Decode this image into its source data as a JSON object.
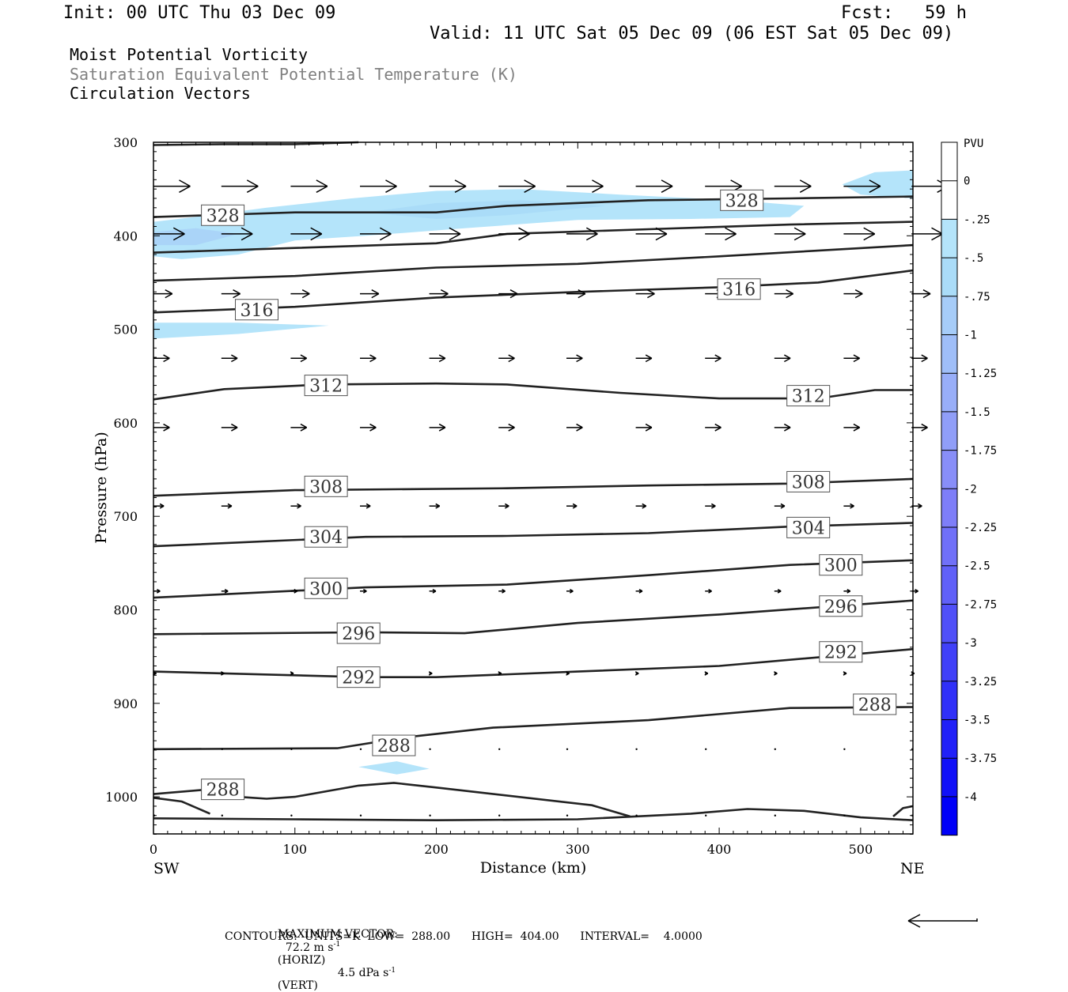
{
  "header": {
    "init": "Init: 00 UTC Thu 03 Dec 09",
    "fcst": "Fcst:   59 h",
    "valid": "Valid: 11 UTC Sat 05 Dec 09 (06 EST Sat 05 Dec 09)",
    "fields": [
      {
        "text": "Moist Potential Vorticity",
        "color": "#000000"
      },
      {
        "text": "Saturation Equivalent Potential Temperature (K)",
        "color": "#808080"
      },
      {
        "text": "Circulation Vectors",
        "color": "#000000"
      }
    ]
  },
  "footer": {
    "max_vector_label": "MAXIMUM VECTOR:",
    "max_vector_horiz": "72.2 m s",
    "horiz_unit": "(HORIZ)",
    "max_vector_vert": "4.5 dPa s",
    "vert_unit": "(VERT)",
    "exp": "-1",
    "contours": "CONTOURS:  UNITS=K  LOW=  288.00      HIGH=  404.00      INTERVAL=    4.0000"
  },
  "chart_data": {
    "type": "cross-section",
    "xlabel": "Distance (km)",
    "ylabel": "Pressure (hPa)",
    "xlim": [
      0,
      537
    ],
    "ylim": [
      1040,
      300
    ],
    "x_ticks": [
      0,
      100,
      200,
      300,
      400,
      500
    ],
    "y_ticks": [
      300,
      400,
      500,
      600,
      700,
      800,
      900,
      1000
    ],
    "endpoint_left": "SW",
    "endpoint_right": "NE",
    "colorbar": {
      "title": "PVU",
      "labels": [
        "0",
        "-.25",
        "-.5",
        "-.75",
        "-1",
        "-1.25",
        "-1.5",
        "-1.75",
        "-2",
        "-2.25",
        "-2.5",
        "-2.75",
        "-3",
        "-3.25",
        "-3.5",
        "-3.75",
        "-4"
      ],
      "colors": [
        "#ffffff",
        "#ffffff",
        "#b4e4fa",
        "#aadcf8",
        "#a6ccf8",
        "#9fbef8",
        "#98aef8",
        "#909ef8",
        "#888ef8",
        "#7e7ef8",
        "#7070f8",
        "#6060f8",
        "#5050f8",
        "#4040f8",
        "#3030f8",
        "#2020f8",
        "#1010f8",
        "#0000f8"
      ]
    },
    "pv_shading": [
      {
        "color": "#b4e4fa",
        "points": [
          [
            0,
            385
          ],
          [
            40,
            378
          ],
          [
            80,
            370
          ],
          [
            140,
            360
          ],
          [
            200,
            352
          ],
          [
            260,
            350
          ],
          [
            330,
            356
          ],
          [
            410,
            362
          ],
          [
            460,
            368
          ],
          [
            450,
            380
          ],
          [
            380,
            382
          ],
          [
            300,
            383
          ],
          [
            220,
            392
          ],
          [
            150,
            400
          ],
          [
            100,
            405
          ],
          [
            60,
            420
          ],
          [
            20,
            425
          ],
          [
            0,
            422
          ]
        ]
      },
      {
        "color": "#aadcf8",
        "points": [
          [
            150,
            375
          ],
          [
            200,
            365
          ],
          [
            260,
            362
          ],
          [
            320,
            368
          ],
          [
            250,
            378
          ],
          [
            200,
            382
          ]
        ]
      },
      {
        "color": "#aad4f8",
        "points": [
          [
            0,
            396
          ],
          [
            30,
            392
          ],
          [
            60,
            398
          ],
          [
            30,
            410
          ],
          [
            0,
            410
          ]
        ]
      },
      {
        "color": "#b4e4fa",
        "points": [
          [
            487,
            345
          ],
          [
            510,
            332
          ],
          [
            537,
            330
          ],
          [
            537,
            360
          ],
          [
            500,
            356
          ]
        ]
      },
      {
        "color": "#b4e4fa",
        "points": [
          [
            0,
            493
          ],
          [
            60,
            493
          ],
          [
            124,
            496
          ],
          [
            60,
            505
          ],
          [
            0,
            510
          ]
        ]
      },
      {
        "color": "#b4e4fa",
        "points": [
          [
            145,
            968
          ],
          [
            172,
            962
          ],
          [
            195,
            970
          ],
          [
            172,
            976
          ]
        ]
      }
    ],
    "theta_contours": [
      {
        "label": "328",
        "points": [
          [
            0,
            380
          ],
          [
            100,
            375
          ],
          [
            200,
            375
          ],
          [
            250,
            368
          ],
          [
            350,
            362
          ],
          [
            450,
            360
          ],
          [
            537,
            358
          ]
        ],
        "label_at": [
          [
            49,
            378
          ],
          [
            416,
            362
          ]
        ]
      },
      {
        "label": "",
        "points": [
          [
            0,
            303
          ],
          [
            50,
            302
          ],
          [
            100,
            302
          ],
          [
            145,
            300
          ]
        ],
        "label_at": []
      },
      {
        "label": "",
        "points": [
          [
            0,
            418
          ],
          [
            100,
            413
          ],
          [
            200,
            408
          ],
          [
            250,
            398
          ],
          [
            350,
            393
          ],
          [
            450,
            388
          ],
          [
            537,
            385
          ]
        ],
        "label_at": []
      },
      {
        "label": "",
        "points": [
          [
            0,
            448
          ],
          [
            100,
            443
          ],
          [
            200,
            434
          ],
          [
            300,
            430
          ],
          [
            400,
            422
          ],
          [
            537,
            410
          ]
        ],
        "label_at": []
      },
      {
        "label": "316",
        "points": [
          [
            0,
            482
          ],
          [
            100,
            476
          ],
          [
            200,
            466
          ],
          [
            300,
            460
          ],
          [
            400,
            455
          ],
          [
            470,
            450
          ],
          [
            537,
            437
          ]
        ],
        "label_at": [
          [
            73,
            479
          ],
          [
            414,
            457
          ]
        ]
      },
      {
        "label": "312",
        "points": [
          [
            0,
            575
          ],
          [
            50,
            564
          ],
          [
            120,
            559
          ],
          [
            200,
            558
          ],
          [
            250,
            559
          ],
          [
            330,
            568
          ],
          [
            400,
            574
          ],
          [
            470,
            574
          ],
          [
            510,
            565
          ],
          [
            537,
            565
          ]
        ],
        "label_at": [
          [
            122,
            560
          ],
          [
            463,
            571
          ]
        ]
      },
      {
        "label": "308",
        "points": [
          [
            0,
            678
          ],
          [
            100,
            672
          ],
          [
            250,
            670
          ],
          [
            350,
            667
          ],
          [
            450,
            665
          ],
          [
            537,
            660
          ]
        ],
        "label_at": [
          [
            122,
            668
          ],
          [
            463,
            663
          ]
        ]
      },
      {
        "label": "304",
        "points": [
          [
            0,
            732
          ],
          [
            150,
            722
          ],
          [
            250,
            721
          ],
          [
            350,
            718
          ],
          [
            450,
            711
          ],
          [
            537,
            707
          ]
        ],
        "label_at": [
          [
            122,
            722
          ],
          [
            463,
            712
          ]
        ]
      },
      {
        "label": "300",
        "points": [
          [
            0,
            787
          ],
          [
            150,
            776
          ],
          [
            250,
            773
          ],
          [
            350,
            763
          ],
          [
            450,
            752
          ],
          [
            537,
            747
          ]
        ],
        "label_at": [
          [
            122,
            777
          ],
          [
            486,
            752
          ]
        ]
      },
      {
        "label": "296",
        "points": [
          [
            0,
            826
          ],
          [
            150,
            824
          ],
          [
            220,
            825
          ],
          [
            300,
            814
          ],
          [
            400,
            805
          ],
          [
            537,
            790
          ]
        ],
        "label_at": [
          [
            145,
            825
          ],
          [
            486,
            796
          ]
        ]
      },
      {
        "label": "292",
        "points": [
          [
            0,
            866
          ],
          [
            150,
            872
          ],
          [
            200,
            872
          ],
          [
            300,
            866
          ],
          [
            400,
            860
          ],
          [
            537,
            842
          ]
        ],
        "label_at": [
          [
            145,
            872
          ],
          [
            486,
            845
          ]
        ]
      },
      {
        "label": "288",
        "points": [
          [
            0,
            949
          ],
          [
            130,
            948
          ],
          [
            180,
            936
          ],
          [
            240,
            926
          ],
          [
            350,
            918
          ],
          [
            450,
            905
          ],
          [
            537,
            904
          ]
        ],
        "label_at": [
          [
            170,
            945
          ],
          [
            510,
            901
          ]
        ]
      },
      {
        "label": "288",
        "points": [
          [
            0,
            997
          ],
          [
            40,
            992
          ],
          [
            60,
            1000
          ],
          [
            80,
            1002
          ],
          [
            100,
            1000
          ],
          [
            145,
            988
          ],
          [
            170,
            985
          ],
          [
            200,
            990
          ],
          [
            310,
            1009
          ],
          [
            337,
            1021
          ]
        ],
        "label_at": [
          [
            49,
            992
          ]
        ]
      },
      {
        "label": "",
        "points": [
          [
            0,
            1001
          ],
          [
            20,
            1005
          ],
          [
            40,
            1018
          ]
        ],
        "label_at": []
      },
      {
        "label": "",
        "points": [
          [
            0,
            1023
          ],
          [
            100,
            1024
          ],
          [
            200,
            1025
          ],
          [
            300,
            1024
          ],
          [
            380,
            1018
          ],
          [
            420,
            1013
          ],
          [
            460,
            1015
          ],
          [
            500,
            1022
          ],
          [
            537,
            1025
          ]
        ],
        "label_at": []
      },
      {
        "label": "",
        "points": [
          [
            523,
            1021
          ],
          [
            530,
            1012
          ],
          [
            537,
            1010
          ]
        ],
        "label_at": []
      }
    ],
    "vector_rows": [
      {
        "p": 347,
        "u": 39,
        "w": 0
      },
      {
        "p": 398,
        "u": 33,
        "w": 0
      },
      {
        "p": 462,
        "u": 20,
        "w": 0
      },
      {
        "p": 531,
        "u": 17,
        "w": 0
      },
      {
        "p": 605,
        "u": 17,
        "w": 0
      },
      {
        "p": 689,
        "u": 11,
        "w": 0
      },
      {
        "p": 780,
        "u": 7,
        "w": 0
      },
      {
        "p": 868,
        "u": 3,
        "w": 0
      },
      {
        "p": 949,
        "u": 0.5,
        "w": 0
      },
      {
        "p": 1020,
        "u": 0.5,
        "w": 0
      }
    ],
    "vector_x": [
      0,
      48,
      97,
      146,
      195,
      244,
      292,
      341,
      390,
      439,
      488,
      536
    ]
  }
}
